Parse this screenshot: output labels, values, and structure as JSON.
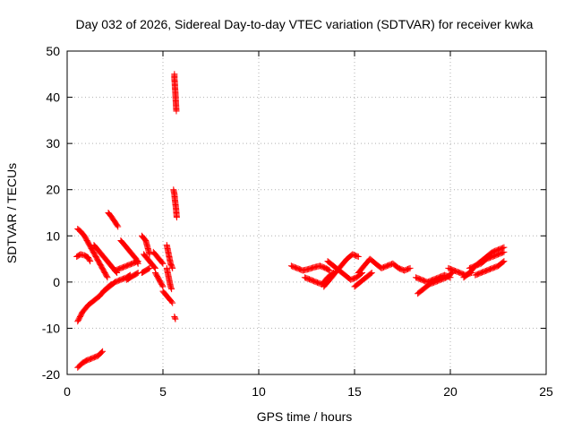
{
  "chart_data": {
    "type": "scatter",
    "title": "Day 032 of 2026, Sidereal Day-to-day VTEC variation (SDTVAR) for receiver kwka",
    "xlabel": "GPS time / hours",
    "ylabel": "SDTVAR / TECUs",
    "xlim": [
      0,
      25
    ],
    "ylim": [
      -20,
      50
    ],
    "xticks": [
      0,
      5,
      10,
      15,
      20,
      25
    ],
    "yticks": [
      -20,
      -10,
      0,
      10,
      20,
      30,
      40,
      50
    ],
    "grid": true,
    "marker": "+",
    "color": "#ff0000",
    "series": [
      {
        "name": "arc-a",
        "x": [
          0.55,
          0.8,
          1.1,
          1.4,
          1.7,
          1.9,
          2.1,
          2.3
        ],
        "y": [
          -8.5,
          -6.5,
          -5,
          -4,
          -3,
          -2,
          -1.2,
          -0.5
        ]
      },
      {
        "name": "arc-b",
        "x": [
          0.55,
          0.8,
          1.0,
          1.3,
          1.6,
          1.85
        ],
        "y": [
          -18.5,
          -17.5,
          -17,
          -16.5,
          -16,
          -15
        ]
      },
      {
        "name": "arc-c",
        "x": [
          0.55,
          0.7,
          0.9,
          1.1,
          1.3,
          1.5,
          1.7,
          1.9,
          2.1
        ],
        "y": [
          11.5,
          11,
          10,
          8.5,
          7,
          5.5,
          4,
          2.5,
          1
        ]
      },
      {
        "name": "arc-d",
        "x": [
          0.5,
          0.7,
          0.9,
          1.1,
          1.2
        ],
        "y": [
          5.5,
          6,
          5.8,
          5.3,
          4.5
        ]
      },
      {
        "name": "arc-e",
        "x": [
          1.4,
          1.6,
          1.8,
          2.0,
          2.2,
          2.4,
          2.6
        ],
        "y": [
          8,
          7,
          6,
          5,
          4,
          3,
          2
        ]
      },
      {
        "name": "arc-f",
        "x": [
          2.15,
          2.3,
          2.5,
          2.65
        ],
        "y": [
          15,
          14.2,
          13,
          12
        ]
      },
      {
        "name": "arc-g",
        "x": [
          1.9,
          2.2,
          2.5,
          2.8,
          3.1,
          3.3
        ],
        "y": [
          -2,
          -1,
          0,
          0.5,
          1,
          1.5
        ]
      },
      {
        "name": "arc-h",
        "x": [
          2.8,
          3.0,
          3.2,
          3.4,
          3.6,
          3.7
        ],
        "y": [
          9,
          8,
          7,
          6,
          5,
          4
        ]
      },
      {
        "name": "arc-i",
        "x": [
          2.5,
          2.8,
          3.1,
          3.4,
          3.7
        ],
        "y": [
          2.5,
          3,
          3.5,
          4,
          4.5
        ]
      },
      {
        "name": "arc-j",
        "x": [
          3.1,
          3.3,
          3.5,
          3.7
        ],
        "y": [
          0.5,
          1,
          1.5,
          2
        ]
      },
      {
        "name": "arc-k",
        "x": [
          3.9,
          4.1,
          4.2,
          4.3
        ],
        "y": [
          10,
          9,
          7.5,
          6
        ]
      },
      {
        "name": "arc-l",
        "x": [
          3.9,
          4.1,
          4.3
        ],
        "y": [
          2,
          2.5,
          3
        ]
      },
      {
        "name": "arc-m",
        "x": [
          4.0,
          4.2,
          4.4,
          4.6
        ],
        "y": [
          6,
          5,
          4,
          3
        ]
      },
      {
        "name": "arc-n",
        "x": [
          4.5,
          4.8,
          5.0
        ],
        "y": [
          6.5,
          5,
          4
        ]
      },
      {
        "name": "arc-o",
        "x": [
          4.6,
          4.8,
          5.0
        ],
        "y": [
          2,
          0.5,
          -1
        ]
      },
      {
        "name": "arc-p",
        "x": [
          5.2,
          5.3,
          5.4,
          5.5
        ],
        "y": [
          8,
          6,
          4,
          3
        ]
      },
      {
        "name": "arc-q",
        "x": [
          5.0,
          5.2,
          5.4,
          5.5
        ],
        "y": [
          -2,
          -3,
          -4,
          -4.5
        ]
      },
      {
        "name": "arc-r",
        "x": [
          5.2,
          5.3,
          5.4,
          5.45
        ],
        "y": [
          3,
          1,
          -1,
          -1.5
        ]
      },
      {
        "name": "spike-high",
        "x": [
          5.6,
          5.6,
          5.62,
          5.63,
          5.65,
          5.66,
          5.68,
          5.7
        ],
        "y": [
          45,
          44,
          43,
          42,
          41,
          40,
          38.5,
          37
        ]
      },
      {
        "name": "spike-mid",
        "x": [
          5.55,
          5.6,
          5.62,
          5.65,
          5.68,
          5.7,
          5.72
        ],
        "y": [
          20,
          19,
          18,
          17,
          16,
          15,
          14
        ]
      },
      {
        "name": "spike-low",
        "x": [
          5.6,
          5.65
        ],
        "y": [
          -7.5,
          -8
        ]
      },
      {
        "name": "arc-s",
        "x": [
          11.7,
          12.0,
          12.3,
          12.6,
          12.9,
          13.2,
          13.5,
          13.7
        ],
        "y": [
          3.5,
          3,
          2.5,
          2.8,
          3.2,
          3.5,
          3,
          2.5
        ]
      },
      {
        "name": "arc-t",
        "x": [
          12.4,
          12.7,
          13.0,
          13.3,
          13.6,
          13.9
        ],
        "y": [
          1,
          0.5,
          0,
          -0.5,
          1,
          2
        ]
      },
      {
        "name": "arc-u",
        "x": [
          13.4,
          13.7,
          14.0,
          14.3,
          14.6,
          14.9,
          15.2
        ],
        "y": [
          -1,
          0.5,
          2,
          3.5,
          5,
          6,
          5.5
        ]
      },
      {
        "name": "arc-v",
        "x": [
          13.6,
          13.9,
          14.2,
          14.5,
          14.8,
          15.1,
          15.4
        ],
        "y": [
          4.5,
          3.5,
          2.5,
          1.5,
          0.5,
          1,
          2
        ]
      },
      {
        "name": "arc-w",
        "x": [
          15.2,
          15.5,
          15.8,
          16.1,
          16.4,
          16.7,
          17.0,
          17.3,
          17.6,
          17.9
        ],
        "y": [
          2,
          3.5,
          5,
          4,
          3,
          3.5,
          4,
          3,
          2.5,
          3
        ]
      },
      {
        "name": "arc-x",
        "x": [
          15.0,
          15.3,
          15.6,
          15.9
        ],
        "y": [
          -1,
          0,
          1,
          2
        ]
      },
      {
        "name": "arc-y",
        "x": [
          18.3,
          18.6,
          18.9,
          19.2,
          19.5,
          19.8,
          20.1
        ],
        "y": [
          -2.5,
          -1.5,
          -0.5,
          0,
          0.5,
          1,
          2
        ]
      },
      {
        "name": "arc-z",
        "x": [
          18.2,
          18.5,
          18.8,
          19.1,
          19.4,
          19.7,
          20.0
        ],
        "y": [
          1,
          0.5,
          0,
          0.5,
          1,
          1.5,
          1
        ]
      },
      {
        "name": "arc-aa",
        "x": [
          19.9,
          20.2,
          20.5,
          20.8,
          21.1
        ],
        "y": [
          3,
          2.5,
          2,
          1.5,
          2
        ]
      },
      {
        "name": "arc-ab",
        "x": [
          20.7,
          21.0,
          21.3,
          21.6,
          21.9,
          22.2,
          22.5,
          22.8
        ],
        "y": [
          1,
          2,
          3.5,
          4.5,
          5.5,
          6.5,
          7,
          7.5
        ]
      },
      {
        "name": "arc-ac",
        "x": [
          21.0,
          21.3,
          21.6,
          21.9,
          22.2,
          22.5,
          22.8
        ],
        "y": [
          3,
          3.5,
          4,
          5,
          5.5,
          6,
          6.5
        ]
      },
      {
        "name": "arc-ad",
        "x": [
          21.3,
          21.6,
          21.9,
          22.2,
          22.5,
          22.8
        ],
        "y": [
          1.5,
          2,
          2.5,
          3,
          3.5,
          4.5
        ]
      }
    ]
  }
}
